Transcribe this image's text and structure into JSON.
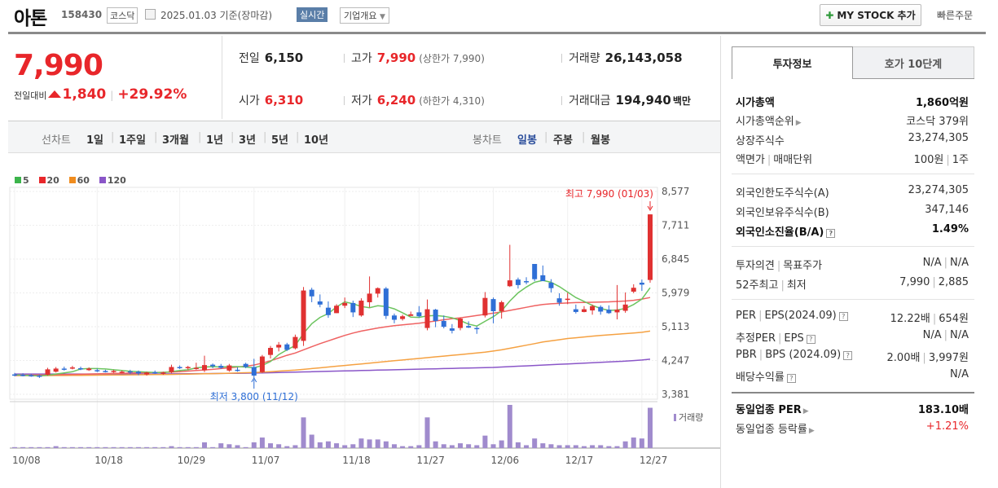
{
  "header": {
    "stock_name": "아톤",
    "code": "158430",
    "market": "코스닥",
    "date": "2025.01.03",
    "date_basis": "기준(장마감)",
    "realtime_label": "실시간",
    "company_overview_label": "기업개요",
    "my_stock_label": "MY STOCK 추가",
    "quick_order_label": "빠른주문"
  },
  "quote": {
    "price": "7,990",
    "change_label": "전일대비",
    "change": "1,840",
    "change_pct": "+29.92%",
    "prev_close_label": "전일",
    "prev_close": "6,150",
    "high_label": "고가",
    "high": "7,990",
    "upper_limit": "(상한가 7,990)",
    "volume_label": "거래량",
    "volume": "26,143,058",
    "open_label": "시가",
    "open": "6,310",
    "low_label": "저가",
    "low": "6,240",
    "lower_limit": "(하한가 4,310)",
    "turnover_label": "거래대금",
    "turnover": "194,940",
    "turnover_unit": "백만"
  },
  "chart_tabs": {
    "line_label": "선차트",
    "line_periods": [
      "1일",
      "1주일",
      "3개월",
      "1년",
      "3년",
      "5년",
      "10년"
    ],
    "candle_label": "봉차트",
    "candle_periods": [
      "일봉",
      "주봉",
      "월봉"
    ],
    "active_candle": "일봉"
  },
  "chart_data": {
    "type": "candlestick",
    "legend": [
      {
        "name": "5",
        "color": "#3cb44b"
      },
      {
        "name": "20",
        "color": "#e8262a"
      },
      {
        "name": "60",
        "color": "#f08c1e"
      },
      {
        "name": "120",
        "color": "#8a56c8"
      }
    ],
    "yticks": [
      "8,577",
      "7,711",
      "6,845",
      "5,979",
      "5,113",
      "4,247",
      "3,381"
    ],
    "ylim": [
      3381,
      8577
    ],
    "xticks": [
      "10/08",
      "10/18",
      "10/29",
      "11/07",
      "11/18",
      "11/27",
      "12/06",
      "12/17",
      "12/27"
    ],
    "high_annotation": "최고 7,990 (01/03)",
    "low_annotation": "최저 3,800 (11/12)",
    "volume_label": "거래량",
    "up_color": "#e03131",
    "down_color": "#2f6fd6",
    "candles": [
      [
        3890,
        3930,
        3840,
        3870,
        1
      ],
      [
        3880,
        3920,
        3840,
        3870,
        1
      ],
      [
        3870,
        3900,
        3830,
        3860,
        1
      ],
      [
        3860,
        3880,
        3800,
        3830,
        1
      ],
      [
        3880,
        4060,
        3860,
        4020,
        1
      ],
      [
        3960,
        4080,
        3940,
        4040,
        2
      ],
      [
        4040,
        4090,
        3990,
        4030,
        1
      ],
      [
        4040,
        4110,
        4020,
        4070,
        1
      ],
      [
        4050,
        4090,
        4000,
        4020,
        1
      ],
      [
        4000,
        4070,
        3980,
        4040,
        1
      ],
      [
        4000,
        4040,
        3950,
        3980,
        1
      ],
      [
        3980,
        4010,
        3940,
        3960,
        1
      ],
      [
        3950,
        4010,
        3930,
        3980,
        1
      ],
      [
        3960,
        3990,
        3920,
        3960,
        1
      ],
      [
        3970,
        4010,
        3900,
        3950,
        1
      ],
      [
        3960,
        3990,
        3870,
        3920,
        1
      ],
      [
        3890,
        3960,
        3860,
        3940,
        1
      ],
      [
        3950,
        3990,
        3900,
        3930,
        1
      ],
      [
        3920,
        3960,
        3880,
        3940,
        1
      ],
      [
        3950,
        4140,
        3920,
        4080,
        2
      ],
      [
        4080,
        4120,
        4030,
        4060,
        1
      ],
      [
        4050,
        4110,
        4010,
        4080,
        1
      ],
      [
        4060,
        4190,
        4010,
        4060,
        1
      ],
      [
        4000,
        4370,
        3950,
        4130,
        6
      ],
      [
        4140,
        4170,
        4050,
        4100,
        1
      ],
      [
        4110,
        4160,
        4030,
        4060,
        5
      ],
      [
        3990,
        4160,
        3960,
        4120,
        4
      ],
      [
        4010,
        4070,
        3960,
        4000,
        3
      ],
      [
        4160,
        4190,
        4050,
        4080,
        1
      ],
      [
        4080,
        4290,
        3800,
        3860,
        6
      ],
      [
        3950,
        4390,
        3930,
        4350,
        11
      ],
      [
        4390,
        4620,
        4300,
        4570,
        5
      ],
      [
        4580,
        4720,
        4480,
        4650,
        4
      ],
      [
        4660,
        4700,
        4490,
        4520,
        2
      ],
      [
        4560,
        4910,
        4530,
        4850,
        3
      ],
      [
        4750,
        6130,
        4620,
        6040,
        32
      ],
      [
        6060,
        6110,
        5740,
        5890,
        14
      ],
      [
        5760,
        5940,
        5610,
        5680,
        6
      ],
      [
        5600,
        5760,
        5340,
        5410,
        7
      ],
      [
        5460,
        5690,
        5460,
        5650,
        5
      ],
      [
        5650,
        5860,
        5590,
        5720,
        3
      ],
      [
        5720,
        5780,
        5360,
        5480,
        4
      ],
      [
        5400,
        5840,
        5370,
        5780,
        10
      ],
      [
        5740,
        6400,
        5610,
        5960,
        9
      ],
      [
        5960,
        6120,
        5860,
        6100,
        9
      ],
      [
        6090,
        6130,
        5310,
        5390,
        7
      ],
      [
        5400,
        5450,
        5200,
        5290,
        4
      ],
      [
        5310,
        5420,
        5270,
        5380,
        2
      ],
      [
        5390,
        5500,
        5390,
        5430,
        2
      ],
      [
        5480,
        5640,
        5350,
        5380,
        3
      ],
      [
        5080,
        5810,
        5020,
        5560,
        32
      ],
      [
        5550,
        5570,
        5100,
        5260,
        7
      ],
      [
        5260,
        5400,
        5070,
        5110,
        4
      ],
      [
        5070,
        5180,
        4940,
        5010,
        3
      ],
      [
        5080,
        5350,
        5020,
        5320,
        5
      ],
      [
        5130,
        5250,
        5080,
        5090,
        4
      ],
      [
        5080,
        5120,
        4930,
        5050,
        3
      ],
      [
        5400,
        6000,
        5350,
        5850,
        13
      ],
      [
        5820,
        5860,
        5200,
        5510,
        4
      ],
      [
        5510,
        5780,
        5320,
        5740,
        8
      ],
      [
        6150,
        7210,
        6130,
        6300,
        45
      ],
      [
        6320,
        6370,
        6090,
        6180,
        6
      ],
      [
        6280,
        6380,
        6200,
        6270,
        3
      ],
      [
        6720,
        6720,
        6280,
        6330,
        10
      ],
      [
        6430,
        6680,
        6300,
        6280,
        5
      ],
      [
        6240,
        6330,
        5990,
        6100,
        4
      ],
      [
        5840,
        5970,
        5650,
        5730,
        3
      ],
      [
        5800,
        5980,
        5690,
        5830,
        3
      ],
      [
        5560,
        5680,
        5450,
        5490,
        3
      ],
      [
        5490,
        5640,
        5480,
        5560,
        2
      ],
      [
        5530,
        5680,
        5420,
        5640,
        3
      ],
      [
        5620,
        5660,
        5420,
        5500,
        3
      ],
      [
        5550,
        5660,
        5440,
        5460,
        2
      ],
      [
        5480,
        6180,
        5300,
        5550,
        2
      ],
      [
        5520,
        5990,
        5470,
        5680,
        7
      ],
      [
        6010,
        6200,
        5970,
        6110,
        11
      ],
      [
        6240,
        6320,
        6030,
        6190,
        10
      ],
      [
        6310,
        7990,
        6240,
        7990,
        42
      ]
    ],
    "ma5": [
      3880,
      3870,
      3860,
      3850,
      3870,
      3900,
      3930,
      3960,
      4030,
      4040,
      4040,
      4030,
      4010,
      3990,
      3970,
      3960,
      3950,
      3940,
      3940,
      3960,
      3990,
      4010,
      4060,
      4080,
      4090,
      4080,
      4090,
      4090,
      4080,
      4060,
      4120,
      4220,
      4400,
      4520,
      4630,
      4940,
      5190,
      5350,
      5450,
      5620,
      5750,
      5700,
      5630,
      5600,
      5650,
      5630,
      5570,
      5470,
      5360,
      5350,
      5390,
      5400,
      5380,
      5340,
      5270,
      5180,
      5130,
      5250,
      5370,
      5520,
      5770,
      5980,
      6130,
      6250,
      6300,
      6250,
      6140,
      6000,
      5860,
      5760,
      5660,
      5580,
      5530,
      5540,
      5580,
      5680,
      5820,
      6110
    ],
    "ma20": [
      3870,
      3872,
      3874,
      3876,
      3878,
      3882,
      3886,
      3890,
      3895,
      3900,
      3905,
      3910,
      3915,
      3920,
      3925,
      3930,
      3935,
      3940,
      3945,
      3950,
      3960,
      3975,
      3990,
      4005,
      4020,
      4040,
      4060,
      4080,
      4100,
      4130,
      4180,
      4240,
      4310,
      4380,
      4440,
      4520,
      4600,
      4680,
      4750,
      4820,
      4890,
      4950,
      5000,
      5040,
      5080,
      5110,
      5140,
      5160,
      5180,
      5200,
      5230,
      5260,
      5290,
      5320,
      5340,
      5370,
      5400,
      5430,
      5460,
      5490,
      5530,
      5570,
      5610,
      5650,
      5680,
      5700,
      5710,
      5720,
      5730,
      5735,
      5740,
      5745,
      5750,
      5760,
      5770,
      5790,
      5820,
      5860
    ],
    "ma60": [
      3860,
      3860,
      3860,
      3860,
      3860,
      3862,
      3864,
      3866,
      3868,
      3870,
      3872,
      3874,
      3876,
      3878,
      3880,
      3882,
      3884,
      3886,
      3888,
      3890,
      3894,
      3898,
      3902,
      3906,
      3910,
      3916,
      3922,
      3928,
      3934,
      3940,
      3950,
      3962,
      3975,
      3988,
      4000,
      4020,
      4040,
      4060,
      4080,
      4100,
      4120,
      4140,
      4160,
      4180,
      4200,
      4220,
      4240,
      4260,
      4280,
      4300,
      4320,
      4340,
      4360,
      4380,
      4400,
      4420,
      4440,
      4460,
      4490,
      4520,
      4560,
      4600,
      4640,
      4680,
      4720,
      4750,
      4780,
      4810,
      4830,
      4850,
      4870,
      4890,
      4905,
      4920,
      4935,
      4950,
      4970,
      5000
    ],
    "ma120": [
      3900,
      3900,
      3900,
      3900,
      3900,
      3900,
      3900,
      3900,
      3900,
      3900,
      3900,
      3900,
      3900,
      3900,
      3900,
      3900,
      3900,
      3900,
      3902,
      3904,
      3906,
      3908,
      3910,
      3912,
      3914,
      3916,
      3918,
      3920,
      3922,
      3925,
      3930,
      3935,
      3940,
      3945,
      3950,
      3955,
      3960,
      3965,
      3970,
      3975,
      3980,
      3985,
      3990,
      3995,
      4000,
      4005,
      4010,
      4015,
      4020,
      4025,
      4030,
      4035,
      4040,
      4045,
      4050,
      4055,
      4060,
      4065,
      4070,
      4080,
      4090,
      4100,
      4110,
      4120,
      4130,
      4140,
      4150,
      4160,
      4170,
      4180,
      4190,
      4200,
      4210,
      4220,
      4230,
      4245,
      4260,
      4280
    ]
  },
  "right_panel": {
    "tab_active": "투자정보",
    "tab_other": "호가 10단계",
    "market_cap_label": "시가총액",
    "market_cap": "1,860억원",
    "cap_rank_label": "시가총액순위",
    "cap_rank": "코스닥 379위",
    "shares_label": "상장주식수",
    "shares": "23,274,305",
    "par_label": "액면가",
    "trade_unit_label": "매매단위",
    "par": "100원",
    "trade_unit": "1주",
    "foreign_limit_label": "외국인한도주식수(A)",
    "foreign_limit": "23,274,305",
    "foreign_hold_label": "외국인보유주식수(B)",
    "foreign_hold": "347,146",
    "foreign_rate_label": "외국인소진율(B/A)",
    "foreign_rate": "1.49%",
    "opinion_label": "투자의견",
    "target_label": "목표주가",
    "opinion": "N/A",
    "target": "N/A",
    "w52_label": "52주최고",
    "w52_low_label": "최저",
    "w52_high": "7,990",
    "w52_low": "2,885",
    "per_label": "PER",
    "eps_label": "EPS(2024.09)",
    "per": "12.22배",
    "eps": "654원",
    "est_per_label": "추정PER",
    "est_eps_label": "EPS",
    "est_per": "N/A",
    "est_eps": "N/A",
    "pbr_label": "PBR",
    "bps_label": "BPS (2024.09)",
    "pbr": "2.00배",
    "bps": "3,997원",
    "div_label": "배당수익률",
    "div": "N/A",
    "ind_per_label": "동일업종 PER",
    "ind_per": "183.10배",
    "ind_chg_label": "동일업종 등락률",
    "ind_chg": "+1.21%"
  }
}
